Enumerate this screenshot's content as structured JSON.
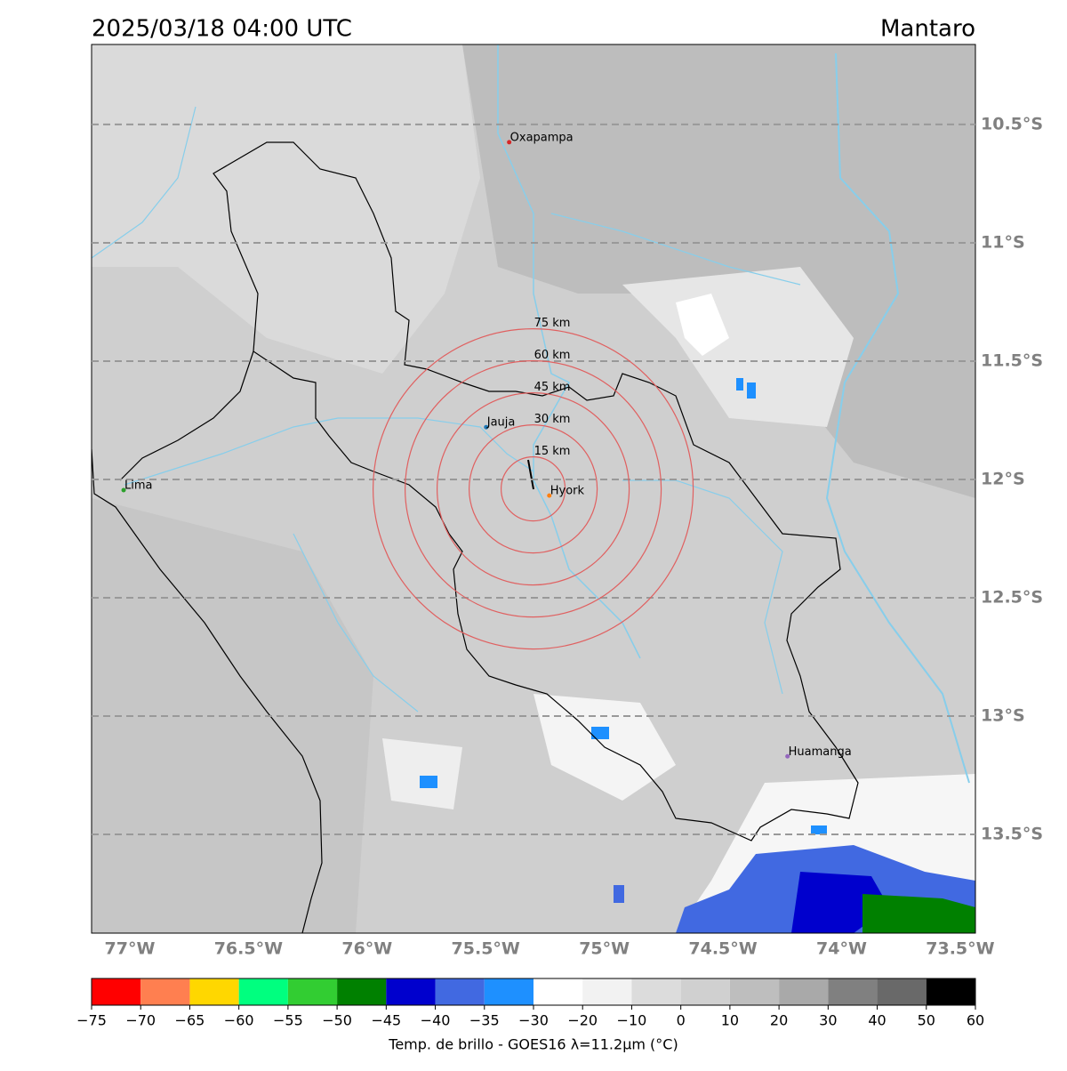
{
  "title": "2025/03/18 04:00 UTC",
  "region": "Mantaro",
  "map": {
    "xlim": [
      -77.161,
      -73.436
    ],
    "ylim": [
      -13.917,
      -10.162
    ],
    "xticks": [
      {
        "value": -77,
        "label": "77°W"
      },
      {
        "value": -76.5,
        "label": "76.5°W"
      },
      {
        "value": -76,
        "label": "76°W"
      },
      {
        "value": -75.5,
        "label": "75.5°W"
      },
      {
        "value": -75,
        "label": "75°W"
      },
      {
        "value": -74.5,
        "label": "74.5°W"
      },
      {
        "value": -74,
        "label": "74°W"
      },
      {
        "value": -73.5,
        "label": "73.5°W"
      }
    ],
    "yticks": [
      {
        "value": -10.5,
        "label": "10.5°S"
      },
      {
        "value": -11,
        "label": "11°S"
      },
      {
        "value": -11.5,
        "label": "11.5°S"
      },
      {
        "value": -12,
        "label": "12°S"
      },
      {
        "value": -12.5,
        "label": "12.5°S"
      },
      {
        "value": -13,
        "label": "13°S"
      },
      {
        "value": -13.5,
        "label": "13.5°S"
      }
    ],
    "grid": true
  },
  "places": [
    {
      "name": "Oxapampa",
      "lon": -75.401,
      "lat": -10.575,
      "color": "#d62728"
    },
    {
      "name": "Jauja",
      "lon": -75.498,
      "lat": -11.779,
      "color": "#1f77b4"
    },
    {
      "name": "Lima",
      "lon": -77.026,
      "lat": -12.045,
      "color": "#2ca02c"
    },
    {
      "name": "Hyork",
      "lon": -75.232,
      "lat": -12.068,
      "color": "#ff7f0e"
    },
    {
      "name": "Huamanga",
      "lon": -74.228,
      "lat": -13.17,
      "color": "#9467bd"
    }
  ],
  "rings": {
    "center": {
      "lon": -75.3,
      "lat": -12.04
    },
    "color": "#e06060",
    "radii": [
      {
        "value": 15,
        "label": "15 km"
      },
      {
        "value": 30,
        "label": "30 km"
      },
      {
        "value": 45,
        "label": "45 km"
      },
      {
        "value": 60,
        "label": "60 km"
      },
      {
        "value": 75,
        "label": "75 km"
      }
    ]
  },
  "colorbar": {
    "label": "Temp. de brillo - GOES16 λ=11.2μm (°C)",
    "ticks": [
      {
        "value": -75,
        "label": "−75"
      },
      {
        "value": -70,
        "label": "−70"
      },
      {
        "value": -65,
        "label": "−65"
      },
      {
        "value": -60,
        "label": "−60"
      },
      {
        "value": -55,
        "label": "−55"
      },
      {
        "value": -50,
        "label": "−50"
      },
      {
        "value": -45,
        "label": "−45"
      },
      {
        "value": -40,
        "label": "−40"
      },
      {
        "value": -35,
        "label": "−35"
      },
      {
        "value": -30,
        "label": "−30"
      },
      {
        "value": -20,
        "label": "−20"
      },
      {
        "value": -10,
        "label": "−10"
      },
      0,
      10,
      20,
      30,
      40,
      50,
      60
    ],
    "colors": [
      "#ff0000",
      "#ff7f50",
      "#ffd700",
      "#00ff7f",
      "#32cd32",
      "#008000",
      "#0000cd",
      "#4169e1",
      "#1e90ff",
      "#ffffff",
      "#f2f2f2",
      "#dcdcdc",
      "#d0d0d0",
      "#bebebe",
      "#a9a9a9",
      "#808080",
      "#696969",
      "#000000"
    ]
  }
}
